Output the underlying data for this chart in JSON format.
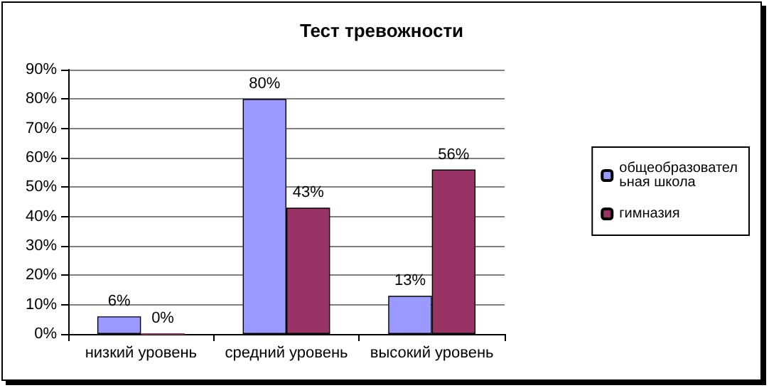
{
  "chart_data": {
    "type": "bar",
    "title": "Тест тревожности",
    "categories": [
      "низкий уровень",
      "средний уровень",
      "высокий уровень"
    ],
    "series": [
      {
        "name": "общеобразовательная школа",
        "color": "#9999ff",
        "values": [
          6,
          80,
          13
        ],
        "value_labels": [
          "6%",
          "80%",
          "13%"
        ]
      },
      {
        "name": "гимназия",
        "color": "#993366",
        "values": [
          0,
          43,
          56
        ],
        "value_labels": [
          "0%",
          "43%",
          "56%"
        ]
      }
    ],
    "ylim": [
      0,
      90
    ],
    "yticks": [
      {
        "value": 0,
        "label": "0%"
      },
      {
        "value": 10,
        "label": "10%"
      },
      {
        "value": 20,
        "label": "20%"
      },
      {
        "value": 30,
        "label": "30%"
      },
      {
        "value": 40,
        "label": "40%"
      },
      {
        "value": 50,
        "label": "50%"
      },
      {
        "value": 60,
        "label": "60%"
      },
      {
        "value": 70,
        "label": "70%"
      },
      {
        "value": 80,
        "label": "80%"
      },
      {
        "value": 90,
        "label": "90%"
      }
    ],
    "grid": "y",
    "legend": "right"
  }
}
